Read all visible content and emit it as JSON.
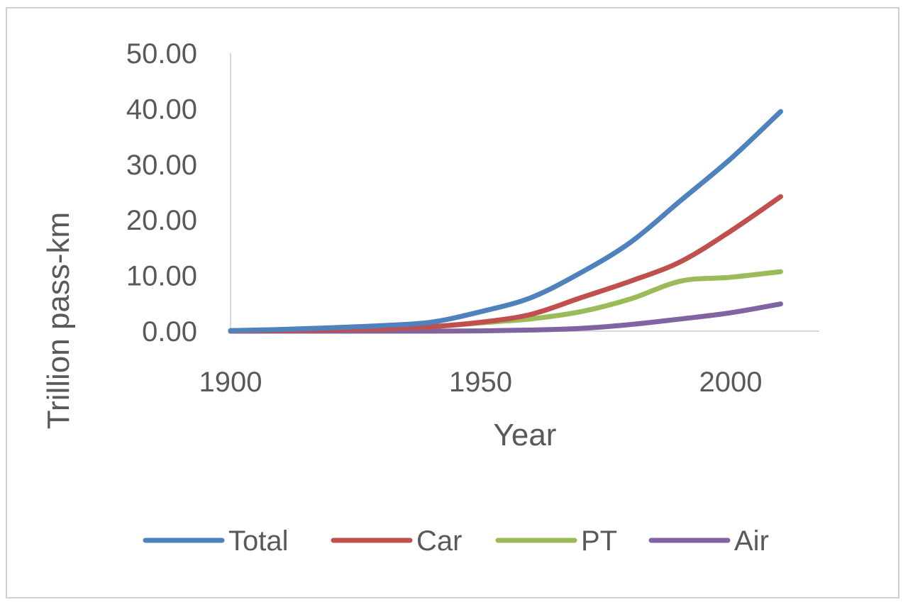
{
  "chart_data": {
    "type": "line",
    "title": "",
    "xlabel": "Year",
    "ylabel": "Trillion pass-km",
    "xlim": [
      1900,
      2020
    ],
    "ylim": [
      0,
      50
    ],
    "xticks": [
      "1900",
      "1950",
      "2000"
    ],
    "yticks": [
      "0.00",
      "10.00",
      "20.00",
      "30.00",
      "40.00",
      "50.00"
    ],
    "grid": false,
    "legend": "bottom",
    "x": [
      1900,
      1910,
      1920,
      1930,
      1940,
      1950,
      1960,
      1970,
      1980,
      1990,
      2000,
      2010
    ],
    "series": [
      {
        "name": "Total",
        "color": "#4f81bd",
        "values": [
          0.1,
          0.3,
          0.6,
          1.0,
          1.6,
          3.5,
          6.0,
          10.5,
          16.0,
          23.5,
          31.0,
          39.5
        ]
      },
      {
        "name": "Car",
        "color": "#c0504d",
        "values": [
          0.0,
          0.1,
          0.2,
          0.4,
          0.8,
          1.6,
          3.0,
          6.0,
          9.0,
          12.5,
          18.0,
          24.2
        ]
      },
      {
        "name": "PT",
        "color": "#9bbb59",
        "values": [
          0.1,
          0.2,
          0.4,
          0.6,
          0.8,
          1.5,
          2.2,
          3.5,
          5.8,
          9.0,
          9.7,
          10.7
        ]
      },
      {
        "name": "Air",
        "color": "#8064a2",
        "values": [
          0.0,
          0.0,
          0.0,
          0.0,
          0.0,
          0.05,
          0.2,
          0.5,
          1.2,
          2.2,
          3.3,
          4.9
        ]
      }
    ]
  }
}
